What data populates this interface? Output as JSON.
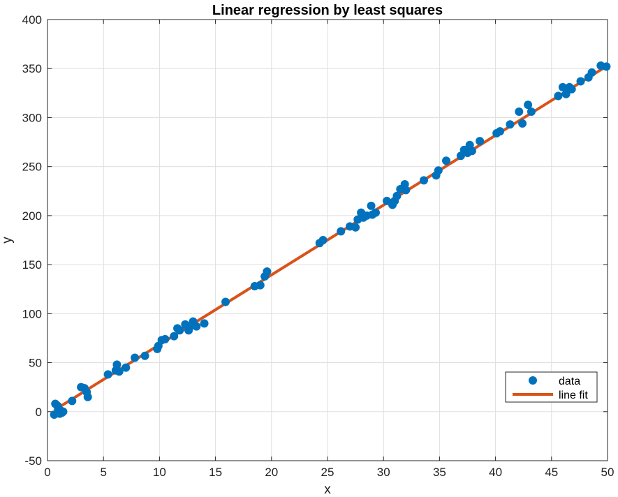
{
  "chart_data": {
    "type": "scatter",
    "title": "Linear regression by least squares",
    "xlabel": "x",
    "ylabel": "y",
    "xlim": [
      0,
      50
    ],
    "ylim": [
      -50,
      400
    ],
    "xticks": [
      0,
      5,
      10,
      15,
      20,
      25,
      30,
      35,
      40,
      45,
      50
    ],
    "yticks": [
      -50,
      0,
      50,
      100,
      150,
      200,
      250,
      300,
      350,
      400
    ],
    "grid": true,
    "legend_position": "bottom-right",
    "series": [
      {
        "name": "data",
        "kind": "scatter",
        "color": "#0072BD",
        "points": [
          [
            0.6,
            -3
          ],
          [
            0.7,
            8
          ],
          [
            0.9,
            6
          ],
          [
            1.0,
            3
          ],
          [
            1.1,
            -2
          ],
          [
            1.2,
            1
          ],
          [
            1.3,
            -1
          ],
          [
            1.4,
            0
          ],
          [
            2.2,
            11
          ],
          [
            3.0,
            25
          ],
          [
            3.3,
            24
          ],
          [
            3.5,
            20
          ],
          [
            3.6,
            15
          ],
          [
            5.4,
            38
          ],
          [
            6.1,
            42
          ],
          [
            6.2,
            48
          ],
          [
            6.4,
            41
          ],
          [
            7.0,
            45
          ],
          [
            7.8,
            55
          ],
          [
            8.7,
            57
          ],
          [
            9.8,
            64
          ],
          [
            9.9,
            67
          ],
          [
            10.2,
            73
          ],
          [
            10.5,
            74
          ],
          [
            11.3,
            77
          ],
          [
            11.6,
            85
          ],
          [
            11.8,
            83
          ],
          [
            12.3,
            89
          ],
          [
            12.6,
            83
          ],
          [
            12.9,
            88
          ],
          [
            13.0,
            92
          ],
          [
            13.3,
            87
          ],
          [
            14.0,
            90
          ],
          [
            15.9,
            112
          ],
          [
            18.5,
            128
          ],
          [
            19.0,
            129
          ],
          [
            19.4,
            138
          ],
          [
            19.6,
            143
          ],
          [
            24.3,
            172
          ],
          [
            24.6,
            175
          ],
          [
            26.2,
            184
          ],
          [
            27.0,
            189
          ],
          [
            27.5,
            188
          ],
          [
            27.7,
            196
          ],
          [
            28.0,
            203
          ],
          [
            28.2,
            198
          ],
          [
            28.5,
            200
          ],
          [
            28.9,
            210
          ],
          [
            29.0,
            201
          ],
          [
            29.3,
            203
          ],
          [
            30.3,
            215
          ],
          [
            30.8,
            211
          ],
          [
            31.0,
            215
          ],
          [
            31.2,
            220
          ],
          [
            31.5,
            227
          ],
          [
            31.9,
            232
          ],
          [
            32.0,
            226
          ],
          [
            33.6,
            236
          ],
          [
            34.7,
            241
          ],
          [
            34.9,
            246
          ],
          [
            35.6,
            256
          ],
          [
            36.9,
            261
          ],
          [
            37.2,
            267
          ],
          [
            37.5,
            264
          ],
          [
            37.7,
            272
          ],
          [
            37.9,
            266
          ],
          [
            38.6,
            276
          ],
          [
            40.1,
            284
          ],
          [
            40.4,
            286
          ],
          [
            41.3,
            293
          ],
          [
            42.1,
            306
          ],
          [
            42.4,
            294
          ],
          [
            42.9,
            313
          ],
          [
            43.2,
            306
          ],
          [
            45.6,
            322
          ],
          [
            46.0,
            331
          ],
          [
            46.3,
            324
          ],
          [
            46.6,
            331
          ],
          [
            46.8,
            329
          ],
          [
            47.6,
            337
          ],
          [
            48.3,
            341
          ],
          [
            48.6,
            346
          ],
          [
            49.4,
            353
          ],
          [
            49.9,
            352
          ]
        ]
      },
      {
        "name": "line fit",
        "kind": "line",
        "color": "#D95319",
        "x": [
          0.6,
          50
        ],
        "y": [
          1.5,
          353
        ]
      }
    ]
  }
}
